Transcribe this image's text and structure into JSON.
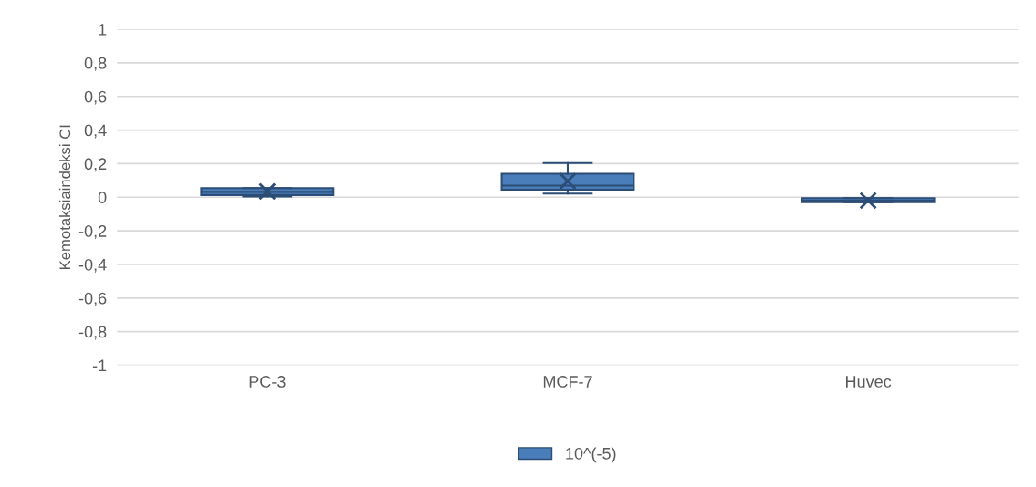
{
  "chart_data": {
    "type": "box",
    "ylabel": "Kemotaksiaindeksi CI",
    "categories": [
      "PC-3",
      "MCF-7",
      "Huvec"
    ],
    "series": [
      {
        "name": "10^(-5)",
        "color": "#4a7ebb",
        "boxes": [
          {
            "low": 0.004,
            "q1": 0.013,
            "median": 0.032,
            "q3": 0.054,
            "high": 0.054,
            "mean": 0.035
          },
          {
            "low": 0.022,
            "q1": 0.045,
            "median": 0.069,
            "q3": 0.14,
            "high": 0.204,
            "mean": 0.096
          },
          {
            "low": -0.03,
            "q1": -0.03,
            "median": -0.02,
            "q3": -0.005,
            "high": -0.005,
            "mean": -0.02
          }
        ]
      }
    ],
    "ylim": [
      -1,
      1
    ],
    "yticks": [
      {
        "value": -1,
        "label": "-1"
      },
      {
        "value": -0.8,
        "label": "-0,8"
      },
      {
        "value": -0.6,
        "label": "-0,6"
      },
      {
        "value": -0.4,
        "label": "-0,4"
      },
      {
        "value": -0.2,
        "label": "-0,2"
      },
      {
        "value": 0,
        "label": "0"
      },
      {
        "value": 0.2,
        "label": "0,2"
      },
      {
        "value": 0.4,
        "label": "0,4"
      },
      {
        "value": 0.6,
        "label": "0,6"
      },
      {
        "value": 0.8,
        "label": "0,8"
      },
      {
        "value": 1,
        "label": "1"
      }
    ],
    "grid": "y",
    "legend": "bottom",
    "marker": "cross"
  }
}
